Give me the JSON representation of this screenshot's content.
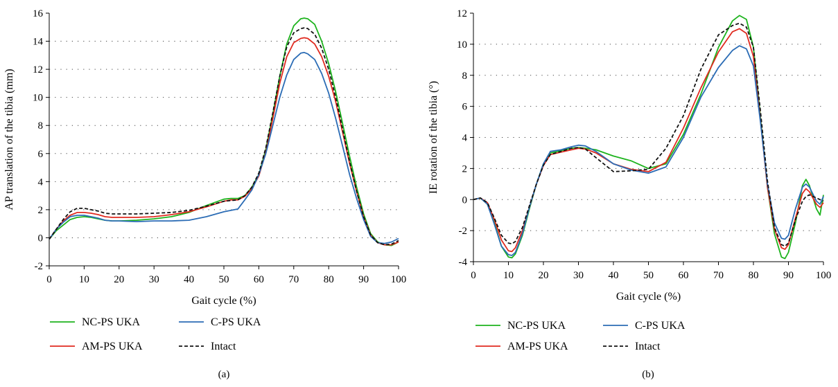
{
  "chart_data": [
    {
      "type": "line",
      "caption": "(a)",
      "xlabel": "Gait cycle (%)",
      "ylabel": "AP translation of the tibia (mm)",
      "xlim": [
        0,
        100
      ],
      "ylim": [
        -2,
        16
      ],
      "xticks": [
        0,
        10,
        20,
        30,
        40,
        50,
        60,
        70,
        80,
        90,
        100
      ],
      "yticks": [
        -2,
        0,
        2,
        4,
        6,
        8,
        10,
        12,
        14,
        16
      ],
      "grid": "horizontal dotted",
      "legend": "bottom",
      "series": [
        {
          "name": "NC-PS UKA",
          "color": "#1db31d",
          "dash": "solid",
          "x": [
            0,
            2,
            4,
            6,
            8,
            10,
            12,
            14,
            16,
            18,
            20,
            25,
            30,
            35,
            40,
            45,
            50,
            52,
            54,
            56,
            58,
            60,
            62,
            64,
            66,
            68,
            70,
            72,
            73,
            74,
            76,
            78,
            80,
            82,
            84,
            86,
            88,
            90,
            92,
            94,
            96,
            98,
            100
          ],
          "y": [
            -0.1,
            0.5,
            0.9,
            1.3,
            1.45,
            1.5,
            1.45,
            1.35,
            1.25,
            1.2,
            1.2,
            1.25,
            1.35,
            1.5,
            1.8,
            2.3,
            2.75,
            2.8,
            2.8,
            3.0,
            3.6,
            4.5,
            6.3,
            8.8,
            11.5,
            13.8,
            15.1,
            15.6,
            15.65,
            15.6,
            15.2,
            14.0,
            12.4,
            10.4,
            8.1,
            5.8,
            3.6,
            1.7,
            0.3,
            -0.3,
            -0.5,
            -0.55,
            -0.3
          ]
        },
        {
          "name": "AM-PS UKA",
          "color": "#e02a1f",
          "dash": "solid",
          "x": [
            0,
            2,
            4,
            6,
            8,
            10,
            12,
            14,
            16,
            18,
            20,
            25,
            30,
            35,
            40,
            45,
            50,
            52,
            54,
            56,
            58,
            60,
            62,
            64,
            66,
            68,
            70,
            72,
            73,
            74,
            76,
            78,
            80,
            82,
            84,
            86,
            88,
            90,
            92,
            94,
            96,
            98,
            100
          ],
          "y": [
            -0.1,
            0.6,
            1.2,
            1.6,
            1.8,
            1.8,
            1.75,
            1.65,
            1.5,
            1.45,
            1.45,
            1.45,
            1.5,
            1.65,
            1.85,
            2.2,
            2.6,
            2.7,
            2.7,
            2.95,
            3.5,
            4.4,
            6.1,
            8.5,
            11.0,
            12.9,
            13.9,
            14.2,
            14.25,
            14.2,
            13.8,
            12.9,
            11.5,
            9.7,
            7.5,
            5.3,
            3.3,
            1.5,
            0.2,
            -0.35,
            -0.5,
            -0.5,
            -0.3
          ]
        },
        {
          "name": "C-PS UKA",
          "color": "#2b6cb5",
          "dash": "solid",
          "x": [
            0,
            2,
            4,
            6,
            8,
            10,
            12,
            14,
            16,
            18,
            20,
            25,
            30,
            35,
            40,
            45,
            50,
            52,
            54,
            56,
            58,
            60,
            62,
            64,
            66,
            68,
            70,
            72,
            73,
            74,
            76,
            78,
            80,
            82,
            84,
            86,
            88,
            90,
            92,
            94,
            96,
            98,
            100
          ],
          "y": [
            -0.1,
            0.6,
            1.1,
            1.5,
            1.6,
            1.6,
            1.5,
            1.4,
            1.25,
            1.2,
            1.2,
            1.15,
            1.2,
            1.2,
            1.25,
            1.5,
            1.85,
            1.95,
            2.05,
            2.7,
            3.4,
            4.5,
            6.0,
            8.0,
            10.0,
            11.6,
            12.7,
            13.15,
            13.2,
            13.1,
            12.7,
            11.7,
            10.3,
            8.5,
            6.5,
            4.5,
            2.8,
            1.3,
            0.1,
            -0.35,
            -0.4,
            -0.3,
            -0.05
          ]
        },
        {
          "name": "Intact",
          "color": "#111111",
          "dash": "dashed",
          "x": [
            0,
            2,
            4,
            6,
            8,
            10,
            12,
            14,
            16,
            18,
            20,
            25,
            30,
            35,
            40,
            45,
            50,
            52,
            54,
            56,
            58,
            60,
            62,
            64,
            66,
            68,
            70,
            72,
            73,
            74,
            76,
            78,
            80,
            82,
            84,
            86,
            88,
            90,
            92,
            94,
            96,
            98,
            100
          ],
          "y": [
            -0.1,
            0.6,
            1.3,
            1.85,
            2.1,
            2.1,
            2.0,
            1.9,
            1.75,
            1.7,
            1.7,
            1.7,
            1.75,
            1.8,
            1.95,
            2.25,
            2.6,
            2.65,
            2.7,
            3.0,
            3.6,
            4.6,
            6.4,
            8.9,
            11.5,
            13.6,
            14.6,
            14.9,
            14.95,
            14.9,
            14.5,
            13.5,
            12.0,
            10.0,
            7.7,
            5.4,
            3.3,
            1.5,
            0.2,
            -0.35,
            -0.5,
            -0.45,
            -0.2
          ]
        }
      ]
    },
    {
      "type": "line",
      "caption": "(b)",
      "xlabel": "Gait cycle (%)",
      "ylabel": "IE rotation of the tibia (°)",
      "xlim": [
        0,
        100
      ],
      "ylim": [
        -4,
        12
      ],
      "xticks": [
        0,
        10,
        20,
        30,
        40,
        50,
        60,
        70,
        80,
        90,
        100
      ],
      "yticks": [
        -4,
        -2,
        0,
        2,
        4,
        6,
        8,
        10,
        12
      ],
      "grid": "horizontal dotted",
      "legend": "bottom",
      "series": [
        {
          "name": "NC-PS UKA",
          "color": "#1db31d",
          "dash": "solid",
          "x": [
            0,
            2,
            4,
            6,
            8,
            10,
            11,
            12,
            14,
            16,
            18,
            20,
            22,
            25,
            28,
            30,
            32,
            35,
            40,
            45,
            50,
            55,
            60,
            65,
            70,
            74,
            76,
            78,
            80,
            82,
            84,
            86,
            88,
            89,
            90,
            92,
            94,
            95,
            96,
            98,
            99,
            100
          ],
          "y": [
            0,
            0.1,
            -0.3,
            -1.5,
            -3.0,
            -3.7,
            -3.75,
            -3.5,
            -2.3,
            -0.6,
            1.0,
            2.3,
            3.0,
            3.15,
            3.3,
            3.35,
            3.3,
            3.2,
            2.8,
            2.5,
            2.0,
            2.3,
            4.2,
            6.8,
            9.8,
            11.5,
            11.85,
            11.6,
            9.8,
            5.3,
            0.8,
            -2.2,
            -3.7,
            -3.8,
            -3.4,
            -1.5,
            0.9,
            1.3,
            0.9,
            -0.6,
            -1.0,
            0.3
          ]
        },
        {
          "name": "AM-PS UKA",
          "color": "#e02a1f",
          "dash": "solid",
          "x": [
            0,
            2,
            4,
            6,
            8,
            10,
            11,
            12,
            14,
            16,
            18,
            20,
            22,
            25,
            28,
            30,
            32,
            35,
            40,
            45,
            50,
            55,
            60,
            65,
            70,
            74,
            76,
            78,
            80,
            82,
            84,
            86,
            88,
            89,
            90,
            92,
            94,
            95,
            96,
            98,
            99,
            100
          ],
          "y": [
            0,
            0.1,
            -0.2,
            -1.3,
            -2.6,
            -3.3,
            -3.35,
            -3.1,
            -2.0,
            -0.5,
            1.0,
            2.2,
            2.9,
            3.05,
            3.2,
            3.3,
            3.25,
            3.0,
            2.3,
            1.95,
            1.8,
            2.4,
            4.6,
            7.2,
            9.5,
            10.8,
            11.0,
            10.7,
            9.2,
            5.1,
            0.8,
            -1.9,
            -3.1,
            -3.2,
            -2.9,
            -1.2,
            0.4,
            0.7,
            0.5,
            -0.3,
            -0.5,
            -0.2
          ]
        },
        {
          "name": "C-PS UKA",
          "color": "#2b6cb5",
          "dash": "solid",
          "x": [
            0,
            2,
            4,
            6,
            8,
            10,
            11,
            12,
            14,
            16,
            18,
            20,
            22,
            25,
            28,
            30,
            32,
            35,
            40,
            45,
            50,
            55,
            60,
            65,
            70,
            74,
            76,
            78,
            80,
            82,
            84,
            86,
            88,
            89,
            90,
            92,
            94,
            95,
            96,
            98,
            99,
            100
          ],
          "y": [
            0,
            0.1,
            -0.3,
            -1.6,
            -3.0,
            -3.55,
            -3.6,
            -3.4,
            -2.2,
            -0.5,
            1.0,
            2.3,
            3.1,
            3.2,
            3.4,
            3.5,
            3.45,
            3.1,
            2.3,
            1.9,
            1.7,
            2.1,
            4.0,
            6.6,
            8.5,
            9.6,
            9.9,
            9.7,
            8.6,
            5.0,
            1.0,
            -1.5,
            -2.5,
            -2.55,
            -2.3,
            -0.6,
            0.8,
            1.0,
            0.8,
            -0.1,
            -0.3,
            0.2
          ]
        },
        {
          "name": "Intact",
          "color": "#111111",
          "dash": "dashed",
          "x": [
            0,
            2,
            4,
            6,
            8,
            10,
            11,
            12,
            14,
            16,
            18,
            20,
            22,
            25,
            28,
            30,
            32,
            35,
            40,
            45,
            50,
            55,
            60,
            65,
            70,
            74,
            76,
            78,
            80,
            82,
            84,
            86,
            88,
            89,
            90,
            92,
            94,
            95,
            96,
            98,
            99,
            100
          ],
          "y": [
            0,
            0.1,
            -0.2,
            -1.2,
            -2.3,
            -2.8,
            -2.85,
            -2.7,
            -1.8,
            -0.4,
            1.0,
            2.2,
            2.9,
            3.1,
            3.3,
            3.35,
            3.25,
            2.7,
            1.8,
            1.85,
            1.95,
            3.3,
            5.4,
            8.4,
            10.6,
            11.2,
            11.35,
            11.1,
            9.8,
            5.7,
            1.2,
            -1.8,
            -2.9,
            -3.0,
            -2.8,
            -1.3,
            -0.1,
            0.2,
            0.3,
            0.1,
            0.0,
            -0.1
          ]
        }
      ]
    }
  ]
}
